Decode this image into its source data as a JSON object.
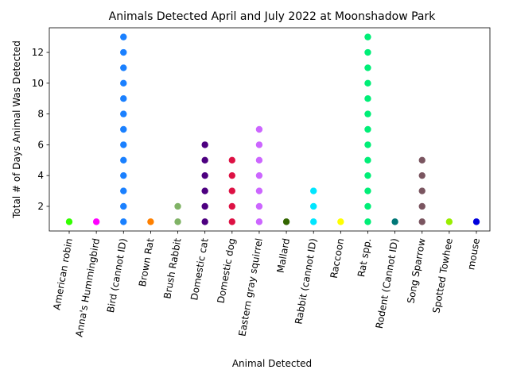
{
  "chart_data": {
    "type": "scatter",
    "title": "Animals Detected April and July 2022 at Moonshadow Park",
    "xlabel": "Animal Detected",
    "ylabel": "Total # of Days Animal Was Detected",
    "ylim": [
      0.4,
      13.6
    ],
    "y_ticks": [
      2,
      4,
      6,
      8,
      10,
      12
    ],
    "grid": false,
    "legend": "none",
    "categories": [
      "American robin",
      "Anna's Hummingbird",
      "Bird (cannot ID)",
      "Brown Rat",
      "Brush Rabbit",
      "Domestic cat",
      "Domestic dog",
      "Eastern gray squirrel",
      "Mallard",
      "Rabbit (cannot ID)",
      "Raccoon",
      "Rat spp.",
      "Rodent (Cannot ID)",
      "Song Sparrow",
      "Spotted Towhee",
      "mouse"
    ],
    "series": [
      {
        "category": "American robin",
        "color": "#33ff00",
        "values": [
          1
        ]
      },
      {
        "category": "Anna's Hummingbird",
        "color": "#ff00ff",
        "values": [
          1
        ]
      },
      {
        "category": "Bird (cannot ID)",
        "color": "#1a80ff",
        "values": [
          1,
          2,
          3,
          4,
          5,
          6,
          7,
          8,
          9,
          10,
          11,
          12,
          13
        ]
      },
      {
        "category": "Brown Rat",
        "color": "#ff8000",
        "values": [
          1
        ]
      },
      {
        "category": "Brush Rabbit",
        "color": "#80b366",
        "values": [
          1,
          2
        ]
      },
      {
        "category": "Domestic cat",
        "color": "#4d0080",
        "values": [
          1,
          2,
          3,
          4,
          5,
          6
        ]
      },
      {
        "category": "Domestic dog",
        "color": "#dd1144",
        "values": [
          1,
          2,
          3,
          4,
          5
        ]
      },
      {
        "category": "Eastern gray squirrel",
        "color": "#cc66ff",
        "values": [
          1,
          2,
          3,
          4,
          5,
          6,
          7
        ]
      },
      {
        "category": "Mallard",
        "color": "#336600",
        "values": [
          1
        ]
      },
      {
        "category": "Rabbit (cannot ID)",
        "color": "#00e6ff",
        "values": [
          1,
          2,
          3
        ]
      },
      {
        "category": "Raccoon",
        "color": "#ffff00",
        "values": [
          1
        ]
      },
      {
        "category": "Rat spp.",
        "color": "#00ee77",
        "values": [
          1,
          2,
          3,
          4,
          5,
          6,
          7,
          8,
          9,
          10,
          11,
          12,
          13
        ]
      },
      {
        "category": "Rodent (Cannot ID)",
        "color": "#007777",
        "values": [
          1
        ]
      },
      {
        "category": "Song Sparrow",
        "color": "#7a5560",
        "values": [
          1,
          2,
          3,
          4,
          5
        ]
      },
      {
        "category": "Spotted Towhee",
        "color": "#99ee00",
        "values": [
          1
        ]
      },
      {
        "category": "mouse",
        "color": "#0000dd",
        "values": [
          1
        ]
      }
    ]
  }
}
